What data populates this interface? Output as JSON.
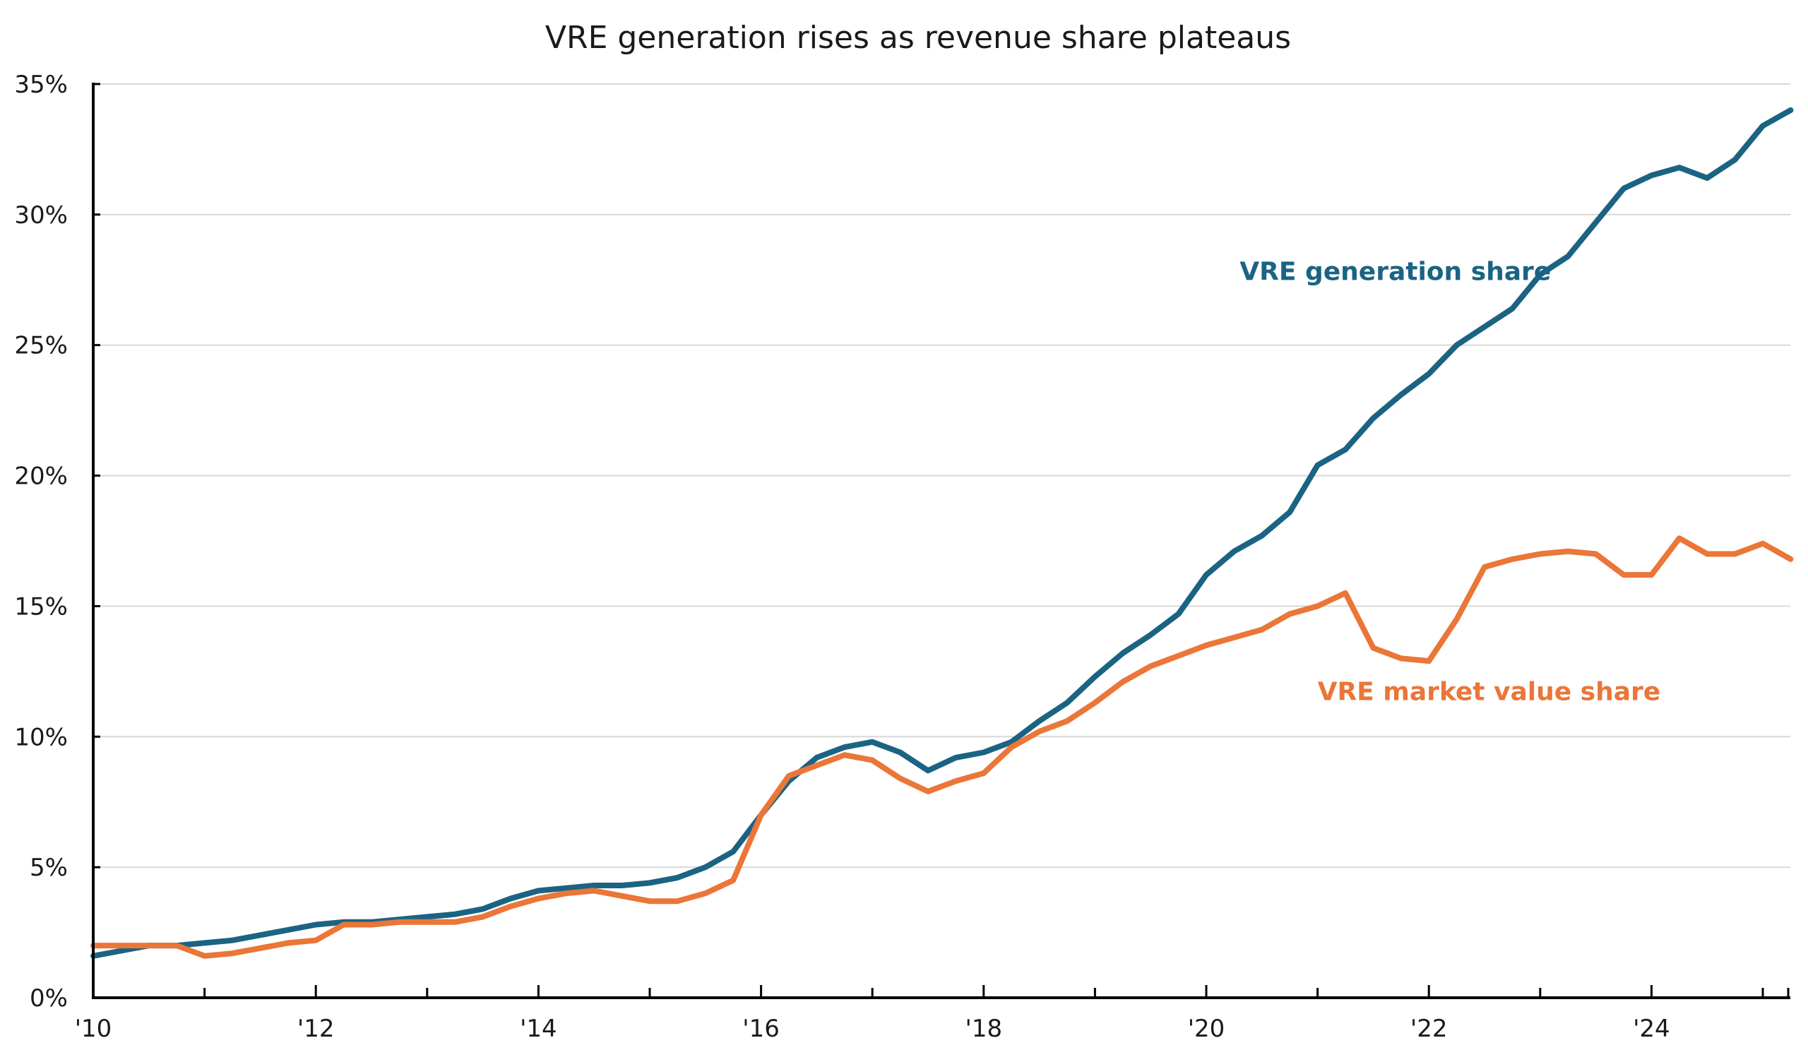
{
  "chart_data": {
    "type": "line",
    "title": "VRE generation rises as revenue share plateaus",
    "xlabel": "",
    "ylabel": "",
    "x_unit": "year (quarterly)",
    "xlim": [
      2010,
      2025.25
    ],
    "ylim": [
      0,
      35
    ],
    "grid": true,
    "legend": "inline labels",
    "y_ticks": [
      {
        "value": 0,
        "label": "0%"
      },
      {
        "value": 5,
        "label": "5%"
      },
      {
        "value": 10,
        "label": "10%"
      },
      {
        "value": 15,
        "label": "15%"
      },
      {
        "value": 20,
        "label": "20%"
      },
      {
        "value": 25,
        "label": "25%"
      },
      {
        "value": 30,
        "label": "30%"
      },
      {
        "value": 35,
        "label": "35%"
      }
    ],
    "x_ticks": [
      {
        "value": 2010,
        "label": "'10"
      },
      {
        "value": 2011,
        "label": ""
      },
      {
        "value": 2012,
        "label": "'12"
      },
      {
        "value": 2013,
        "label": ""
      },
      {
        "value": 2014,
        "label": "'14"
      },
      {
        "value": 2015,
        "label": ""
      },
      {
        "value": 2016,
        "label": "'16"
      },
      {
        "value": 2017,
        "label": ""
      },
      {
        "value": 2018,
        "label": "'18"
      },
      {
        "value": 2019,
        "label": ""
      },
      {
        "value": 2020,
        "label": "'20"
      },
      {
        "value": 2021,
        "label": ""
      },
      {
        "value": 2022,
        "label": "'22"
      },
      {
        "value": 2023,
        "label": ""
      },
      {
        "value": 2024,
        "label": "'24"
      },
      {
        "value": 2025,
        "label": ""
      }
    ],
    "x": [
      2010.0,
      2010.25,
      2010.5,
      2010.75,
      2011.0,
      2011.25,
      2011.5,
      2011.75,
      2012.0,
      2012.25,
      2012.5,
      2012.75,
      2013.0,
      2013.25,
      2013.5,
      2013.75,
      2014.0,
      2014.25,
      2014.5,
      2014.75,
      2015.0,
      2015.25,
      2015.5,
      2015.75,
      2016.0,
      2016.25,
      2016.5,
      2016.75,
      2017.0,
      2017.25,
      2017.5,
      2017.75,
      2018.0,
      2018.25,
      2018.5,
      2018.75,
      2019.0,
      2019.25,
      2019.5,
      2019.75,
      2020.0,
      2020.25,
      2020.5,
      2020.75,
      2021.0,
      2021.25,
      2021.5,
      2021.75,
      2022.0,
      2022.25,
      2022.5,
      2022.75,
      2023.0,
      2023.25,
      2023.5,
      2023.75,
      2024.0,
      2024.25,
      2024.5,
      2024.75,
      2025.0,
      2025.25
    ],
    "series": [
      {
        "name": "VRE generation share",
        "color": "#1b6383",
        "label_position": {
          "x": 2020.3,
          "y": 27.5
        },
        "values": [
          1.6,
          1.8,
          2.0,
          2.0,
          2.1,
          2.2,
          2.4,
          2.6,
          2.8,
          2.9,
          2.9,
          3.0,
          3.1,
          3.2,
          3.4,
          3.8,
          4.1,
          4.2,
          4.3,
          4.3,
          4.4,
          4.6,
          5.0,
          5.6,
          7.0,
          8.3,
          9.2,
          9.6,
          9.8,
          9.4,
          8.7,
          9.2,
          9.4,
          9.8,
          10.6,
          11.3,
          12.3,
          13.2,
          13.9,
          14.7,
          16.2,
          17.1,
          17.7,
          18.6,
          20.4,
          21.0,
          22.2,
          23.1,
          23.9,
          25.0,
          25.7,
          26.4,
          27.7,
          28.4,
          29.7,
          31.0,
          31.5,
          31.8,
          31.4,
          32.1,
          33.4,
          34.0
        ]
      },
      {
        "name": "VRE market value share",
        "color": "#ea7638",
        "label_position": {
          "x": 2021.0,
          "y": 11.4
        },
        "values": [
          2.0,
          2.0,
          2.0,
          2.0,
          1.6,
          1.7,
          1.9,
          2.1,
          2.2,
          2.8,
          2.8,
          2.9,
          2.9,
          2.9,
          3.1,
          3.5,
          3.8,
          4.0,
          4.1,
          3.9,
          3.7,
          3.7,
          4.0,
          4.5,
          7.0,
          8.5,
          8.9,
          9.3,
          9.1,
          8.4,
          7.9,
          8.3,
          8.6,
          9.6,
          10.2,
          10.6,
          11.3,
          12.1,
          12.7,
          13.1,
          13.5,
          13.8,
          14.1,
          14.7,
          15.0,
          15.5,
          13.4,
          13.0,
          12.9,
          14.5,
          16.5,
          16.8,
          17.0,
          17.1,
          17.0,
          16.2,
          16.2,
          17.6,
          17.0,
          17.0,
          17.4,
          16.8
        ]
      }
    ]
  }
}
